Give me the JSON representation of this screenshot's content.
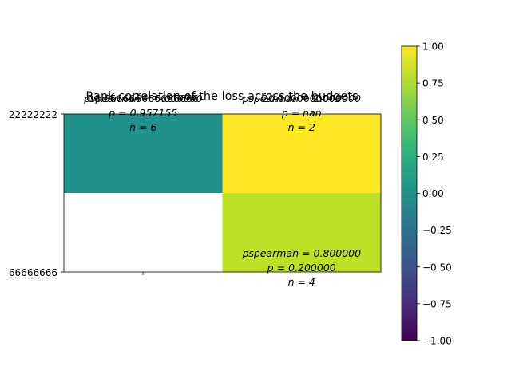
{
  "chart_data": {
    "type": "heatmap",
    "title": "Rank correlation of the loss across the budgets",
    "xlabel": "",
    "ylabel": "",
    "x_tick_labels": [
      ""
    ],
    "y_tick_labels": [
      "22222222",
      "66666666"
    ],
    "cells": [
      {
        "row": 0,
        "col": 0,
        "value": 0.0,
        "color": "#21918c",
        "lines": [
          "06.666666666666666",
          "ρspearman = 0.000000",
          "p = 0.957155",
          "n = 6"
        ]
      },
      {
        "row": 0,
        "col": 1,
        "value": 1.0,
        "color": "#fde725",
        "lines": [
          "20.0000000000",
          "ρspearman = 1.000000",
          "p = nan",
          "n = 2"
        ]
      },
      {
        "row": 1,
        "col": 0,
        "value": null,
        "color": "#ffffff",
        "lines": []
      },
      {
        "row": 1,
        "col": 1,
        "value": 0.8,
        "color": "#bddf26",
        "lines": [
          "ρspearman = 0.800000",
          "p = 0.200000",
          "n = 4"
        ]
      }
    ],
    "colorbar": {
      "min": -1.0,
      "max": 1.0,
      "colormap": "viridis",
      "ticks": [
        "1.00",
        "0.75",
        "0.50",
        "0.25",
        "0.00",
        "−0.25",
        "−0.50",
        "−0.75",
        "−1.00"
      ]
    }
  }
}
